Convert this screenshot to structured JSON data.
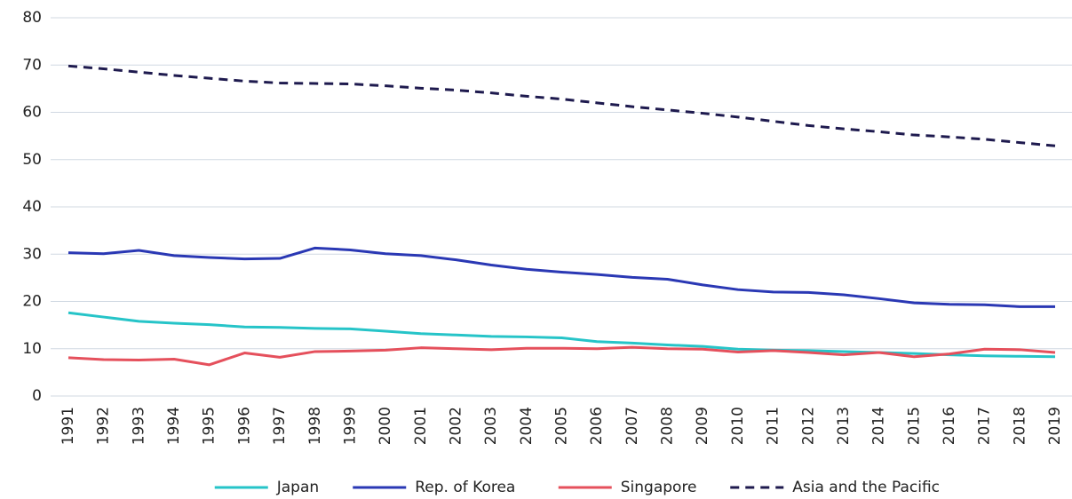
{
  "chart_data": {
    "type": "line",
    "categories": [
      "1991",
      "1992",
      "1993",
      "1994",
      "1995",
      "1996",
      "1997",
      "1998",
      "1999",
      "2000",
      "2001",
      "2002",
      "2003",
      "2004",
      "2005",
      "2006",
      "2007",
      "2008",
      "2009",
      "2010",
      "2011",
      "2012",
      "2013",
      "2014",
      "2015",
      "2016",
      "2017",
      "2018",
      "2019"
    ],
    "series": [
      {
        "name": "Japan",
        "color": "#26c4c8",
        "values": [
          17.6,
          16.7,
          15.8,
          15.4,
          15.1,
          14.6,
          14.5,
          14.3,
          14.2,
          13.7,
          13.2,
          12.9,
          12.6,
          12.5,
          12.3,
          11.5,
          11.2,
          10.8,
          10.5,
          9.9,
          9.7,
          9.6,
          9.4,
          9.2,
          9.0,
          8.7,
          8.5,
          8.4,
          8.3
        ]
      },
      {
        "name": "Rep. of Korea",
        "color": "#2a38b4",
        "values": [
          30.3,
          30.1,
          30.8,
          29.7,
          29.3,
          29.0,
          29.1,
          31.3,
          30.9,
          30.1,
          29.7,
          28.8,
          27.7,
          26.8,
          26.2,
          25.7,
          25.1,
          24.7,
          23.5,
          22.5,
          22.0,
          21.9,
          21.4,
          20.6,
          19.7,
          19.4,
          19.3,
          18.9,
          18.9
        ]
      },
      {
        "name": "Singapore",
        "color": "#e5505c",
        "values": [
          8.1,
          7.7,
          7.6,
          7.8,
          6.6,
          9.1,
          8.2,
          9.4,
          9.5,
          9.7,
          10.2,
          10.0,
          9.8,
          10.1,
          10.1,
          10.0,
          10.3,
          10.0,
          9.9,
          9.3,
          9.6,
          9.2,
          8.7,
          9.2,
          8.3,
          8.9,
          9.9,
          9.8,
          9.2
        ]
      },
      {
        "name": "Asia and the Pacific",
        "color": "#1e1a4e",
        "dashed": true,
        "values": [
          69.8,
          69.2,
          68.5,
          67.8,
          67.2,
          66.6,
          66.2,
          66.1,
          66.0,
          65.6,
          65.1,
          64.7,
          64.1,
          63.4,
          62.8,
          62.0,
          61.2,
          60.5,
          59.8,
          59.0,
          58.1,
          57.2,
          56.5,
          55.9,
          55.2,
          54.8,
          54.3,
          53.6,
          52.9
        ]
      }
    ],
    "ylim": [
      0,
      80
    ],
    "yticks": [
      0,
      10,
      20,
      30,
      40,
      50,
      60,
      70,
      80
    ],
    "grid": true,
    "legend": "bottom"
  }
}
